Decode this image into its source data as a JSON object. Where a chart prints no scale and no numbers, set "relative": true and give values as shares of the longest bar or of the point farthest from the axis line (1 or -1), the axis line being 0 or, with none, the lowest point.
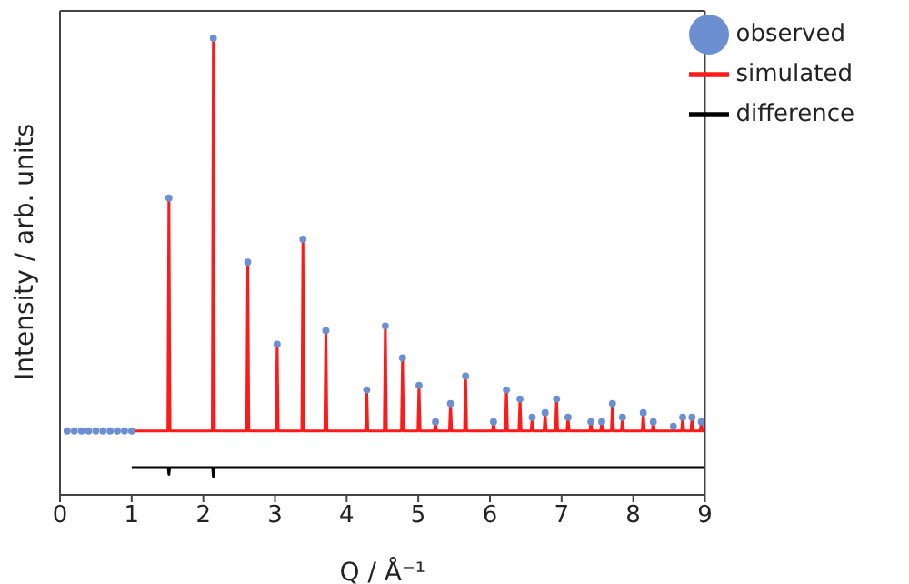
{
  "chart_data": {
    "type": "line",
    "relative": true,
    "xlabel": "Q / Å⁻¹",
    "ylabel": "Intensity / arb. units",
    "xlim": [
      0,
      9
    ],
    "xticks": [
      0,
      1,
      2,
      3,
      4,
      5,
      6,
      7,
      8,
      9
    ],
    "legend": "top right",
    "series": [
      {
        "name": "observed",
        "type": "scatter",
        "marker": "circle",
        "color": "#6b8fd0",
        "x": [
          0.1,
          0.2,
          0.3,
          0.4,
          0.5,
          0.6,
          0.7,
          0.8,
          0.9,
          1.0,
          1.52,
          2.14,
          2.62,
          3.03,
          3.39,
          3.71,
          4.28,
          4.54,
          4.78,
          5.01,
          5.24,
          5.45,
          5.66,
          6.05,
          6.23,
          6.42,
          6.59,
          6.77,
          6.93,
          7.09,
          7.41,
          7.56,
          7.71,
          7.85,
          8.14,
          8.28,
          8.56,
          8.69,
          8.82,
          8.95
        ],
        "values": [
          0.14,
          0.14,
          0.14,
          0.14,
          0.14,
          0.14,
          0.14,
          0.14,
          0.14,
          0.14,
          0.65,
          1,
          0.51,
          0.33,
          0.56,
          0.36,
          0.23,
          0.37,
          0.3,
          0.24,
          0.16,
          0.2,
          0.26,
          0.16,
          0.23,
          0.21,
          0.17,
          0.18,
          0.21,
          0.17,
          0.16,
          0.16,
          0.2,
          0.17,
          0.18,
          0.16,
          0.15,
          0.17,
          0.17,
          0.16
        ]
      },
      {
        "name": "simulated",
        "marker": "none",
        "line_style": "solid",
        "color": "#ff1a1a",
        "x": [
          1,
          1.505,
          1.52,
          1.535,
          2.125,
          2.14,
          2.155,
          2.605,
          2.62,
          2.635,
          3.015,
          3.03,
          3.045,
          3.375,
          3.39,
          3.405,
          3.695,
          3.71,
          3.725,
          4.265,
          4.28,
          4.295,
          4.525,
          4.54,
          4.555,
          4.765,
          4.78,
          4.795,
          4.995,
          5.01,
          5.025,
          5.225,
          5.24,
          5.255,
          5.435,
          5.45,
          5.465,
          5.645,
          5.66,
          5.675,
          6.035,
          6.05,
          6.065,
          6.215,
          6.23,
          6.245,
          6.405,
          6.42,
          6.435,
          6.575,
          6.59,
          6.605,
          6.755,
          6.77,
          6.785,
          6.915,
          6.93,
          6.945,
          7.075,
          7.09,
          7.105,
          7.395,
          7.41,
          7.425,
          7.545,
          7.56,
          7.575,
          7.695,
          7.71,
          7.725,
          7.835,
          7.85,
          7.865,
          8.125,
          8.14,
          8.155,
          8.265,
          8.28,
          8.295,
          8.545,
          8.56,
          8.575,
          8.675,
          8.69,
          8.705,
          8.805,
          8.82,
          8.835,
          8.935,
          8.95,
          8.965,
          9
        ],
        "values": [
          0.14,
          0.14,
          0.65,
          0.14,
          0.14,
          1,
          0.14,
          0.14,
          0.51,
          0.14,
          0.14,
          0.33,
          0.14,
          0.14,
          0.56,
          0.14,
          0.14,
          0.36,
          0.14,
          0.14,
          0.23,
          0.14,
          0.14,
          0.37,
          0.14,
          0.14,
          0.3,
          0.14,
          0.14,
          0.24,
          0.14,
          0.14,
          0.16,
          0.14,
          0.14,
          0.2,
          0.14,
          0.14,
          0.26,
          0.14,
          0.14,
          0.16,
          0.14,
          0.14,
          0.23,
          0.14,
          0.14,
          0.21,
          0.14,
          0.14,
          0.17,
          0.14,
          0.14,
          0.18,
          0.14,
          0.14,
          0.21,
          0.14,
          0.14,
          0.17,
          0.14,
          0.14,
          0.16,
          0.14,
          0.14,
          0.16,
          0.14,
          0.14,
          0.2,
          0.14,
          0.14,
          0.17,
          0.14,
          0.14,
          0.18,
          0.14,
          0.14,
          0.16,
          0.14,
          0.14,
          0.15,
          0.14,
          0.14,
          0.17,
          0.14,
          0.14,
          0.17,
          0.14,
          0.14,
          0.16,
          0.14,
          0.14
        ]
      },
      {
        "name": "difference",
        "marker": "none",
        "line_style": "solid",
        "color": "#000000",
        "x": [
          1,
          1.51,
          1.52,
          1.53,
          2.13,
          2.14,
          2.15,
          9
        ],
        "values": [
          0.06,
          0.06,
          0.045,
          0.06,
          0.06,
          0.04,
          0.06,
          0.06
        ]
      }
    ]
  }
}
